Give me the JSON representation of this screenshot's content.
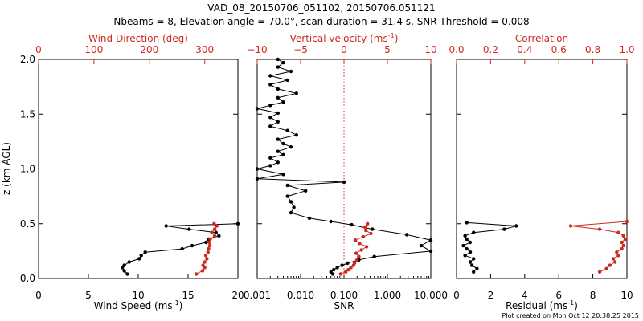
{
  "chart_data": {
    "type": "line",
    "title_line1": "VAD_08_20150706_051102, 20150706.051121",
    "title_line2": "Nbeams = 8, Elevation angle = 70.0°, scan duration = 31.4 s, SNR Threshold = 0.008",
    "footer": "Plot created on Mon Oct 12 20:38:25 2015",
    "ylabel": "z (km AGL)",
    "ylim": [
      0,
      2.0
    ],
    "yticks": [
      0.0,
      0.5,
      1.0,
      1.5,
      2.0
    ],
    "ytick_labels": [
      "0.0",
      "0.5",
      "1.0",
      "1.5",
      "2.0"
    ],
    "colors": {
      "primary": "#000000",
      "secondary": "#cc2a1e"
    },
    "panels": [
      {
        "name": "wind",
        "xlabel_bottom": "Wind Speed",
        "xlabel_bottom_units": "ms",
        "xlabel_bottom_units_exp": "-1",
        "xlim_bottom": [
          0,
          20
        ],
        "xticks_bottom": [
          0,
          5,
          10,
          15,
          20
        ],
        "xtick_labels_bottom": [
          "0",
          "5",
          "10",
          "15",
          "20"
        ],
        "xlabel_top": "Wind Direction (deg)",
        "xlim_top": [
          0,
          360
        ],
        "xticks_top": [
          0,
          100,
          200,
          300
        ],
        "xtick_labels_top": [
          "0",
          "100",
          "200",
          "300"
        ],
        "series": [
          {
            "name": "Wind Speed",
            "axis": "bottom",
            "color": "#000000",
            "z": [
              0.04,
              0.07,
              0.1,
              0.12,
              0.15,
              0.18,
              0.21,
              0.24,
              0.27,
              0.3,
              0.33,
              0.36,
              0.39,
              0.42,
              0.45,
              0.48,
              0.5
            ],
            "values": [
              8.9,
              8.6,
              8.4,
              8.6,
              9.1,
              10.1,
              10.3,
              10.7,
              14.4,
              15.4,
              16.8,
              17.1,
              18.1,
              17.8,
              15.1,
              12.8,
              20.0
            ]
          },
          {
            "name": "Wind Direction",
            "axis": "top",
            "color": "#cc2a1e",
            "z": [
              0.04,
              0.07,
              0.1,
              0.12,
              0.15,
              0.18,
              0.21,
              0.24,
              0.27,
              0.3,
              0.33,
              0.36,
              0.39,
              0.42,
              0.45,
              0.48,
              0.5
            ],
            "values": [
              285,
              296,
              300,
              297,
              300,
              304,
              302,
              306,
              307,
              309,
              308,
              310,
              318,
              313,
              318,
              322,
              317
            ]
          }
        ]
      },
      {
        "name": "snr",
        "xlabel_bottom": "SNR",
        "xscale_bottom": "log",
        "xlim_bottom": [
          0.001,
          10.0
        ],
        "xticks_bottom": [
          0.001,
          0.01,
          0.1,
          1.0,
          10.0
        ],
        "xtick_labels_bottom": [
          "0.001",
          "0.010",
          "0.100",
          "1.000",
          "10.000"
        ],
        "xlabel_top": "Vertical velocity",
        "xlabel_top_units": "ms",
        "xlabel_top_units_exp": "-1",
        "xlim_top": [
          -10,
          10
        ],
        "xticks_top": [
          -10,
          -5,
          0,
          5,
          10
        ],
        "xtick_labels_top": [
          "−10",
          "−5",
          "0",
          "5",
          "10"
        ],
        "series": [
          {
            "name": "SNR",
            "axis": "bottom",
            "color": "#000000",
            "z": [
              0.04,
              0.06,
              0.08,
              0.1,
              0.12,
              0.14,
              0.17,
              0.2,
              0.25,
              0.3,
              0.35,
              0.4,
              0.45,
              0.49,
              0.52,
              0.55,
              0.6,
              0.65,
              0.7,
              0.75,
              0.8,
              0.85,
              0.88,
              0.91,
              0.95,
              1.0,
              1.03,
              1.06,
              1.1,
              1.13,
              1.16,
              1.2,
              1.23,
              1.27,
              1.31,
              1.35,
              1.39,
              1.43,
              1.47,
              1.51,
              1.55,
              1.58,
              1.61,
              1.65,
              1.69,
              1.73,
              1.77,
              1.81,
              1.85,
              1.89,
              1.93,
              1.97,
              2.0
            ],
            "values": [
              0.055,
              0.05,
              0.058,
              0.07,
              0.09,
              0.12,
              0.22,
              0.5,
              10.0,
              6.0,
              10.0,
              2.8,
              0.45,
              0.15,
              0.05,
              0.016,
              0.006,
              0.007,
              0.006,
              0.005,
              0.013,
              0.005,
              0.1,
              0.001,
              0.004,
              0.001,
              0.002,
              0.003,
              0.002,
              0.004,
              0.003,
              0.006,
              0.004,
              0.003,
              0.008,
              0.005,
              0.002,
              0.003,
              0.002,
              0.003,
              0.001,
              0.002,
              0.004,
              0.003,
              0.008,
              0.003,
              0.002,
              0.005,
              0.002,
              0.006,
              0.003,
              0.004,
              0.003
            ]
          },
          {
            "name": "Vertical velocity",
            "axis": "top",
            "color": "#cc2a1e",
            "z": [
              0.04,
              0.06,
              0.08,
              0.1,
              0.12,
              0.14,
              0.17,
              0.2,
              0.23,
              0.26,
              0.29,
              0.32,
              0.35,
              0.38,
              0.41,
              0.44,
              0.47,
              0.5
            ],
            "values": [
              -0.4,
              0.2,
              0.5,
              0.8,
              1.1,
              1.2,
              1.5,
              1.7,
              1.4,
              2.0,
              2.6,
              1.8,
              1.3,
              2.2,
              3.1,
              2.5,
              2.4,
              2.7
            ]
          }
        ]
      },
      {
        "name": "residual",
        "xlabel_bottom": "Residual",
        "xlabel_bottom_units": "ms",
        "xlabel_bottom_units_exp": "-1",
        "xlim_bottom": [
          0,
          10
        ],
        "xticks_bottom": [
          0,
          2,
          4,
          6,
          8,
          10
        ],
        "xtick_labels_bottom": [
          "0",
          "2",
          "4",
          "6",
          "8",
          "10"
        ],
        "xlabel_top": "Correlation",
        "xlim_top": [
          0.0,
          1.0
        ],
        "xticks_top": [
          0.0,
          0.2,
          0.4,
          0.6,
          0.8,
          1.0
        ],
        "xtick_labels_top": [
          "0.0",
          "0.2",
          "0.4",
          "0.6",
          "0.8",
          "1.0"
        ],
        "series": [
          {
            "name": "Residual",
            "axis": "bottom",
            "color": "#000000",
            "z": [
              0.06,
              0.09,
              0.12,
              0.15,
              0.18,
              0.21,
              0.24,
              0.27,
              0.3,
              0.33,
              0.36,
              0.39,
              0.42,
              0.45,
              0.48,
              0.51
            ],
            "values": [
              1.0,
              1.2,
              0.9,
              0.8,
              1.0,
              0.5,
              0.8,
              0.6,
              0.4,
              0.8,
              0.6,
              0.5,
              1.0,
              2.8,
              3.5,
              0.6
            ]
          },
          {
            "name": "Correlation",
            "axis": "top",
            "color": "#cc2a1e",
            "z": [
              0.06,
              0.09,
              0.12,
              0.15,
              0.18,
              0.21,
              0.24,
              0.27,
              0.3,
              0.33,
              0.36,
              0.39,
              0.42,
              0.45,
              0.48,
              0.52
            ],
            "values": [
              0.84,
              0.88,
              0.9,
              0.93,
              0.92,
              0.95,
              0.94,
              0.97,
              0.98,
              0.97,
              0.99,
              0.98,
              0.95,
              0.84,
              0.67,
              1.0
            ]
          }
        ]
      }
    ]
  }
}
